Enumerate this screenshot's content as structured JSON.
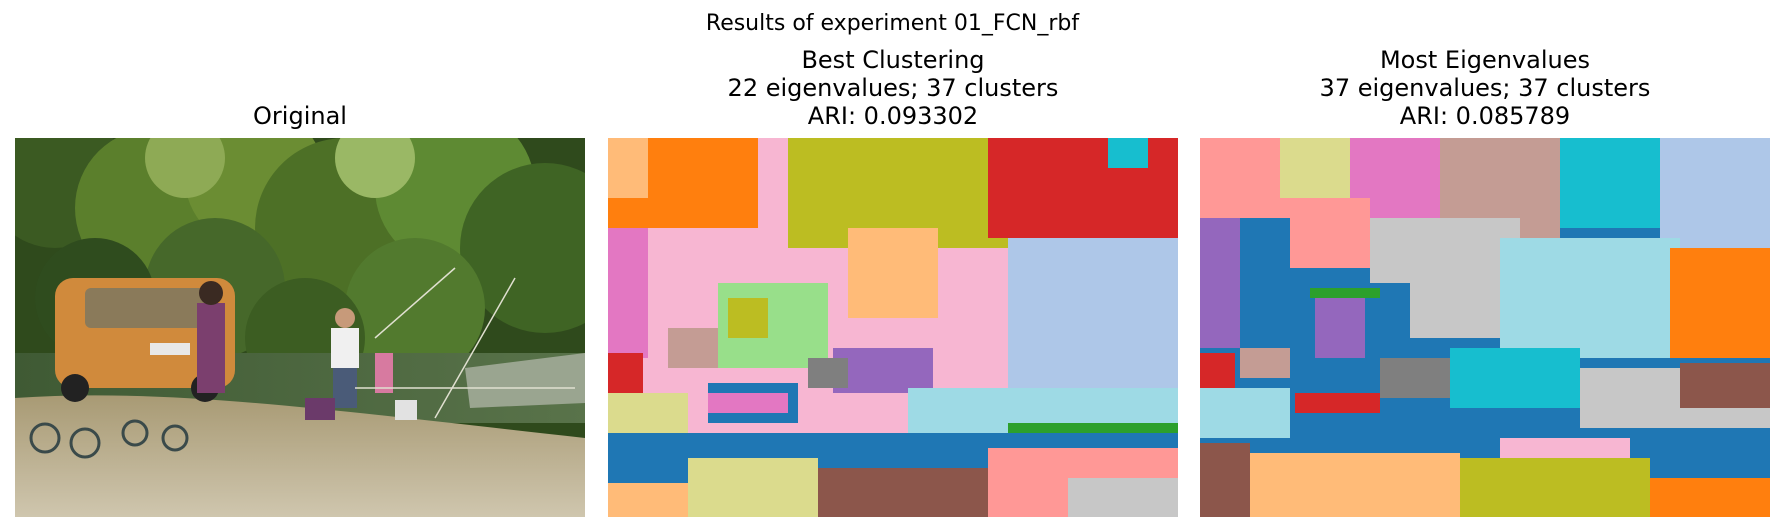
{
  "figure": {
    "suptitle": "Results of experiment 01_FCN_rbf"
  },
  "panels": [
    {
      "title_lines": [
        "Original"
      ],
      "image": "photo-fishing-by-river-with-orange-car"
    },
    {
      "title_lines": [
        "Best Clustering",
        "22 eigenvalues; 37 clusters",
        "ARI: 0.093302"
      ],
      "image": "segmentation-map",
      "palette": [
        "#ff7f0e",
        "#bcbd22",
        "#d62728",
        "#17becf",
        "#e377c2",
        "#f7b6d2",
        "#ffbb78",
        "#98df8a",
        "#9467bd",
        "#1f77b4",
        "#dbdb8d",
        "#8c564b",
        "#ff9896",
        "#2ca02c",
        "#aec7e8",
        "#9edae5",
        "#c49c94",
        "#7f7f7f",
        "#c5b0d5",
        "#c7c7c7"
      ]
    },
    {
      "title_lines": [
        "Most Eigenvalues",
        "37 eigenvalues; 37 clusters",
        "ARI: 0.085789"
      ],
      "image": "segmentation-map",
      "palette": [
        "#ff9896",
        "#dbdb8d",
        "#e377c2",
        "#c49c94",
        "#17becf",
        "#aec7e8",
        "#1f77b4",
        "#9467bd",
        "#c7c7c7",
        "#9edae5",
        "#ff7f0e",
        "#8c564b",
        "#d62728",
        "#ffbb78",
        "#bcbd22",
        "#c5b0d5",
        "#2ca02c",
        "#f7b6d2",
        "#98df8a",
        "#7f7f7f"
      ]
    }
  ]
}
